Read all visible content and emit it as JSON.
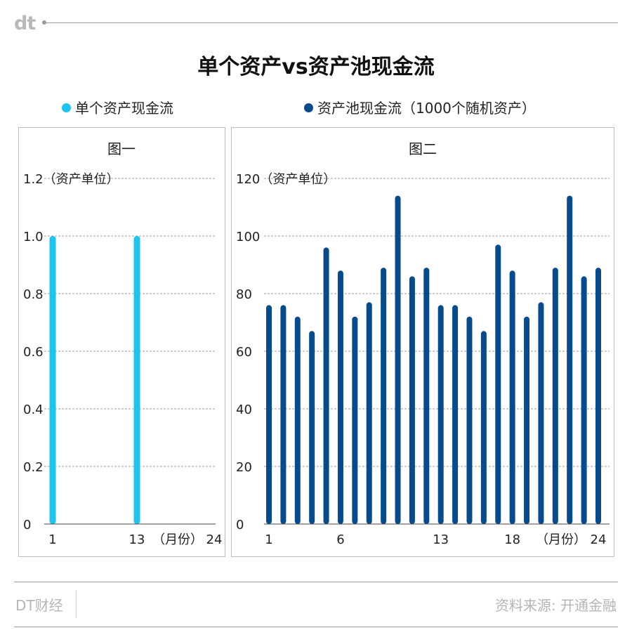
{
  "header": {
    "logo": "dt"
  },
  "title": "单个资产vs资产池现金流",
  "legend": [
    {
      "label": "单个资产现金流",
      "color": "#1ec4f0"
    },
    {
      "label": "资产池现金流（1000个随机资产）",
      "color": "#074b8c"
    }
  ],
  "chart_data": [
    {
      "type": "bar",
      "title": "图一",
      "ylabel": "（资产单位）",
      "xlabel": "（月份）",
      "x": [
        1,
        2,
        3,
        4,
        5,
        6,
        7,
        8,
        9,
        10,
        11,
        12,
        13,
        14,
        15,
        16,
        17,
        18,
        19,
        20,
        21,
        22,
        23,
        24
      ],
      "values": [
        1,
        0,
        0,
        0,
        0,
        0,
        0,
        0,
        0,
        0,
        0,
        0,
        1,
        0,
        0,
        0,
        0,
        0,
        0,
        0,
        0,
        0,
        0,
        0
      ],
      "ylim": [
        0,
        1.2
      ],
      "yticks": [
        "0",
        "0.2",
        "0.4",
        "0.6",
        "0.8",
        "1.0",
        "1.2"
      ],
      "xticks": [
        "1",
        "13",
        "24"
      ],
      "color": "#1ec4f0",
      "grid": true
    },
    {
      "type": "bar",
      "title": "图二",
      "ylabel": "（资产单位）",
      "xlabel": "（月份）",
      "x": [
        1,
        2,
        3,
        4,
        5,
        6,
        7,
        8,
        9,
        10,
        11,
        12,
        13,
        14,
        15,
        16,
        17,
        18,
        19,
        20,
        21,
        22,
        23,
        24
      ],
      "values": [
        76,
        76,
        72,
        67,
        96,
        88,
        72,
        77,
        89,
        114,
        86,
        89,
        76,
        76,
        72,
        67,
        97,
        88,
        72,
        77,
        89,
        114,
        86,
        89
      ],
      "ylim": [
        0,
        120
      ],
      "yticks": [
        "0",
        "20",
        "40",
        "60",
        "80",
        "100",
        "120"
      ],
      "xticks": [
        "1",
        "6",
        "13",
        "18",
        "24"
      ],
      "color": "#074b8c",
      "grid": true
    }
  ],
  "footer": {
    "brand": "DT财经",
    "source": "资料来源: 开通金融"
  }
}
